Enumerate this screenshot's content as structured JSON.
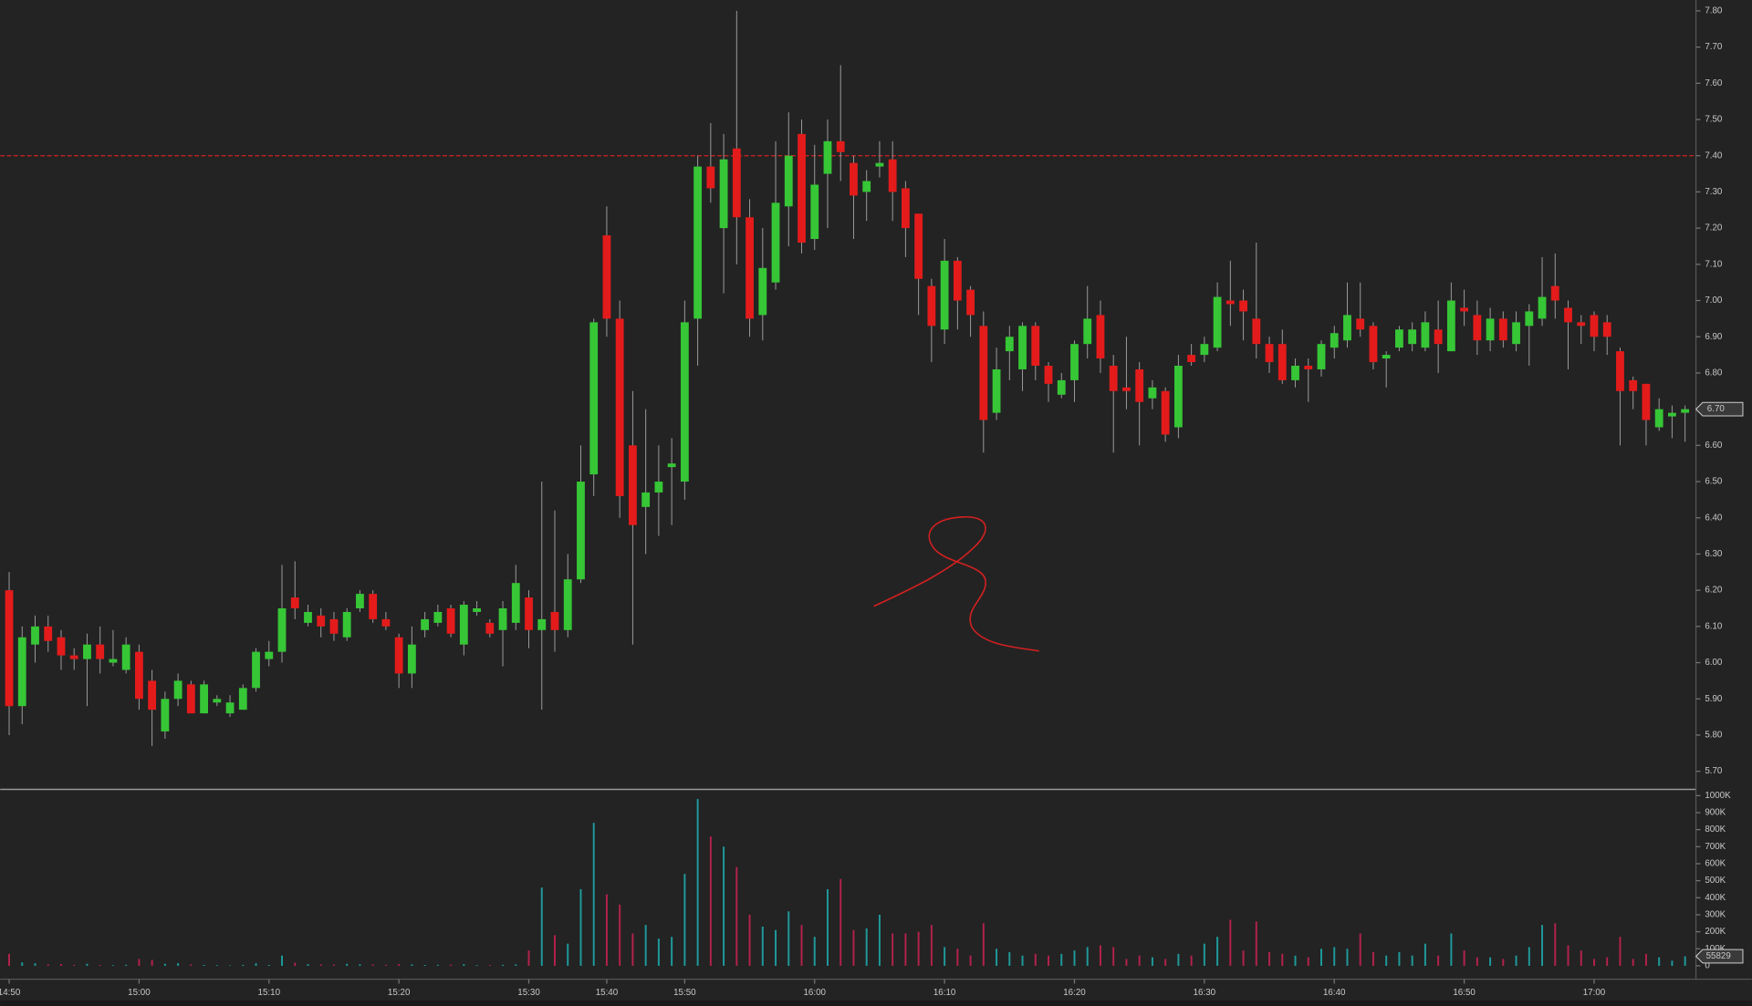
{
  "chart_data": {
    "type": "candlestick",
    "categories": [
      "14:50",
      null,
      null,
      null,
      null,
      null,
      null,
      null,
      null,
      null,
      "15:00",
      null,
      null,
      null,
      null,
      null,
      null,
      null,
      null,
      null,
      "15:10",
      null,
      null,
      null,
      null,
      null,
      null,
      null,
      null,
      null,
      "15:20",
      null,
      null,
      null,
      null,
      null,
      null,
      null,
      null,
      null,
      "15:30",
      null,
      null,
      null,
      null,
      null,
      "15:40",
      null,
      null,
      null,
      null,
      null,
      "15:50",
      null,
      null,
      null,
      null,
      null,
      null,
      null,
      null,
      null,
      "16:00",
      null,
      null,
      null,
      null,
      null,
      null,
      null,
      null,
      null,
      "16:10",
      null,
      null,
      null,
      null,
      null,
      null,
      null,
      null,
      null,
      "16:20",
      null,
      null,
      null,
      null,
      null,
      null,
      null,
      null,
      null,
      "16:30",
      null,
      null,
      null,
      null,
      null,
      null,
      null,
      null,
      null,
      "16:40",
      null,
      null,
      null,
      null,
      null,
      null,
      null,
      null,
      null,
      "16:50",
      null,
      null,
      null,
      null,
      null,
      null,
      null,
      null,
      null,
      "17:00",
      null,
      null,
      null,
      null,
      null,
      null,
      null
    ],
    "open": [
      6.2,
      5.88,
      6.05,
      6.1,
      6.07,
      6.02,
      6.01,
      6.05,
      6.0,
      5.98,
      6.03,
      5.95,
      5.81,
      5.9,
      5.94,
      5.86,
      5.89,
      5.86,
      5.87,
      5.93,
      6.01,
      6.03,
      6.18,
      6.11,
      6.13,
      6.12,
      6.07,
      6.15,
      6.19,
      6.12,
      6.07,
      5.97,
      6.09,
      6.11,
      6.15,
      6.05,
      6.14,
      6.11,
      6.09,
      6.11,
      6.18,
      6.09,
      6.14,
      6.09,
      6.23,
      6.52,
      7.18,
      6.95,
      6.6,
      6.43,
      6.47,
      6.54,
      6.5,
      6.95,
      7.37,
      7.2,
      7.42,
      7.23,
      6.96,
      7.05,
      7.26,
      7.46,
      7.17,
      7.35,
      7.44,
      7.38,
      7.3,
      7.37,
      7.39,
      7.31,
      7.24,
      7.04,
      6.92,
      7.11,
      7.03,
      6.93,
      6.69,
      6.86,
      6.81,
      6.93,
      6.82,
      6.74,
      6.78,
      6.88,
      6.96,
      6.82,
      6.76,
      6.81,
      6.73,
      6.75,
      6.65,
      6.85,
      6.85,
      6.87,
      7.0,
      7.0,
      6.95,
      6.88,
      6.88,
      6.78,
      6.82,
      6.81,
      6.87,
      6.89,
      6.95,
      6.93,
      6.84,
      6.87,
      6.88,
      6.87,
      6.92,
      6.86,
      6.98,
      6.96,
      6.89,
      6.95,
      6.88,
      6.93,
      6.95,
      7.04,
      6.98,
      6.94,
      6.96,
      6.94,
      6.86,
      6.78,
      6.77,
      6.65,
      6.68,
      6.69
    ],
    "high": [
      6.25,
      6.1,
      6.13,
      6.13,
      6.09,
      6.04,
      6.08,
      6.1,
      6.09,
      6.07,
      6.05,
      5.98,
      5.92,
      5.97,
      5.95,
      5.95,
      5.91,
      5.91,
      5.94,
      6.04,
      6.06,
      6.27,
      6.28,
      6.16,
      6.15,
      6.14,
      6.15,
      6.2,
      6.2,
      6.14,
      6.08,
      6.1,
      6.14,
      6.16,
      6.16,
      6.17,
      6.17,
      6.12,
      6.17,
      6.27,
      6.2,
      6.5,
      6.42,
      6.3,
      6.6,
      6.95,
      7.26,
      7.0,
      6.75,
      6.7,
      6.6,
      6.62,
      7.0,
      7.4,
      7.49,
      7.46,
      7.8,
      7.28,
      7.2,
      7.44,
      7.52,
      7.5,
      7.43,
      7.5,
      7.65,
      7.4,
      7.36,
      7.44,
      7.44,
      7.33,
      7.24,
      7.06,
      7.17,
      7.12,
      7.04,
      6.97,
      6.87,
      6.93,
      6.94,
      6.94,
      6.83,
      6.8,
      6.89,
      7.04,
      7.0,
      6.85,
      6.9,
      6.83,
      6.78,
      6.76,
      6.85,
      6.88,
      6.9,
      7.05,
      7.11,
      7.03,
      7.16,
      6.9,
      6.92,
      6.84,
      6.84,
      6.89,
      6.93,
      7.05,
      7.05,
      6.94,
      6.86,
      6.93,
      6.94,
      6.97,
      7.0,
      7.05,
      7.03,
      7.0,
      6.98,
      6.97,
      6.97,
      6.99,
      7.12,
      7.13,
      7.0,
      6.96,
      6.97,
      6.96,
      6.87,
      6.79,
      6.77,
      6.73,
      6.71,
      6.71
    ],
    "low": [
      5.8,
      5.83,
      6.0,
      6.03,
      5.98,
      5.98,
      5.88,
      5.97,
      5.99,
      5.97,
      5.87,
      5.77,
      5.79,
      5.88,
      5.86,
      5.86,
      5.88,
      5.85,
      5.87,
      5.92,
      5.99,
      6.0,
      6.12,
      6.1,
      6.07,
      6.06,
      6.06,
      6.14,
      6.11,
      6.09,
      5.93,
      5.93,
      6.07,
      6.1,
      6.07,
      6.02,
      6.13,
      6.07,
      5.99,
      6.09,
      6.04,
      5.87,
      6.03,
      6.07,
      6.22,
      6.46,
      6.9,
      6.4,
      6.05,
      6.3,
      6.35,
      6.38,
      6.45,
      6.82,
      7.27,
      7.02,
      7.1,
      6.9,
      6.89,
      7.03,
      7.15,
      7.13,
      7.14,
      7.2,
      7.33,
      7.17,
      7.22,
      7.34,
      7.22,
      7.12,
      6.96,
      6.83,
      6.88,
      6.92,
      6.9,
      6.58,
      6.67,
      6.78,
      6.75,
      6.78,
      6.72,
      6.73,
      6.72,
      6.84,
      6.8,
      6.58,
      6.7,
      6.6,
      6.7,
      6.61,
      6.62,
      6.82,
      6.83,
      6.86,
      6.93,
      6.89,
      6.84,
      6.8,
      6.77,
      6.76,
      6.72,
      6.79,
      6.84,
      6.87,
      6.9,
      6.81,
      6.76,
      6.86,
      6.86,
      6.86,
      6.8,
      6.86,
      6.93,
      6.85,
      6.86,
      6.87,
      6.86,
      6.82,
      6.93,
      6.95,
      6.81,
      6.88,
      6.86,
      6.85,
      6.6,
      6.7,
      6.6,
      6.64,
      6.62,
      6.61
    ],
    "close": [
      5.88,
      6.07,
      6.1,
      6.06,
      6.02,
      6.01,
      6.05,
      6.01,
      6.01,
      6.05,
      5.9,
      5.87,
      5.9,
      5.95,
      5.86,
      5.94,
      5.9,
      5.89,
      5.93,
      6.03,
      6.03,
      6.15,
      6.15,
      6.14,
      6.1,
      6.08,
      6.14,
      6.19,
      6.12,
      6.1,
      5.97,
      6.05,
      6.12,
      6.14,
      6.08,
      6.16,
      6.15,
      6.08,
      6.15,
      6.22,
      6.09,
      6.12,
      6.09,
      6.23,
      6.5,
      6.94,
      6.95,
      6.46,
      6.38,
      6.47,
      6.5,
      6.55,
      6.94,
      7.37,
      7.31,
      7.39,
      7.23,
      6.95,
      7.09,
      7.27,
      7.4,
      7.16,
      7.32,
      7.44,
      7.41,
      7.29,
      7.33,
      7.38,
      7.3,
      7.2,
      7.06,
      6.93,
      7.11,
      7.0,
      6.96,
      6.67,
      6.81,
      6.9,
      6.93,
      6.82,
      6.77,
      6.78,
      6.88,
      6.95,
      6.84,
      6.75,
      6.75,
      6.72,
      6.76,
      6.63,
      6.82,
      6.83,
      6.88,
      7.01,
      6.99,
      6.97,
      6.88,
      6.83,
      6.78,
      6.82,
      6.81,
      6.88,
      6.91,
      6.96,
      6.92,
      6.83,
      6.85,
      6.92,
      6.92,
      6.94,
      6.88,
      7.0,
      6.97,
      6.89,
      6.95,
      6.89,
      6.94,
      6.97,
      7.01,
      7.0,
      6.94,
      6.93,
      6.9,
      6.9,
      6.75,
      6.75,
      6.67,
      6.7,
      6.69,
      6.7
    ],
    "volume": [
      70000,
      20000,
      15000,
      8000,
      10000,
      6000,
      12000,
      5000,
      4000,
      6000,
      40000,
      35000,
      12000,
      15000,
      8000,
      5000,
      4000,
      3000,
      6000,
      15000,
      5000,
      60000,
      18000,
      10000,
      8000,
      7000,
      12000,
      9000,
      8000,
      6000,
      10000,
      8000,
      5000,
      6000,
      7000,
      9000,
      4000,
      5000,
      6000,
      8000,
      90000,
      460000,
      180000,
      130000,
      450000,
      840000,
      420000,
      360000,
      190000,
      240000,
      160000,
      170000,
      540000,
      980000,
      760000,
      700000,
      580000,
      300000,
      230000,
      210000,
      320000,
      240000,
      170000,
      450000,
      510000,
      210000,
      220000,
      300000,
      190000,
      190000,
      200000,
      240000,
      110000,
      100000,
      60000,
      250000,
      100000,
      80000,
      60000,
      70000,
      60000,
      70000,
      90000,
      110000,
      120000,
      110000,
      40000,
      60000,
      50000,
      40000,
      70000,
      60000,
      130000,
      170000,
      270000,
      90000,
      260000,
      80000,
      70000,
      60000,
      50000,
      100000,
      110000,
      100000,
      190000,
      80000,
      60000,
      80000,
      60000,
      130000,
      60000,
      190000,
      90000,
      50000,
      50000,
      40000,
      60000,
      110000,
      240000,
      250000,
      120000,
      90000,
      40000,
      50000,
      170000,
      40000,
      70000,
      50000,
      30000,
      55829
    ],
    "ylim": [
      5.65,
      7.83
    ],
    "yticks": [
      {
        "value": 5.7,
        "label": "5.70"
      },
      {
        "value": 5.8,
        "label": "5.80"
      },
      {
        "value": 5.9,
        "label": "5.90"
      },
      {
        "value": 6.0,
        "label": "6.00"
      },
      {
        "value": 6.1,
        "label": "6.10"
      },
      {
        "value": 6.2,
        "label": "6.20"
      },
      {
        "value": 6.3,
        "label": "6.30"
      },
      {
        "value": 6.4,
        "label": "6.40"
      },
      {
        "value": 6.5,
        "label": "6.50"
      },
      {
        "value": 6.6,
        "label": "6.60"
      },
      {
        "value": 6.7,
        "label": "6.70"
      },
      {
        "value": 6.8,
        "label": "6.80"
      },
      {
        "value": 6.9,
        "label": "6.90"
      },
      {
        "value": 7.0,
        "label": "7.00"
      },
      {
        "value": 7.1,
        "label": "7.10"
      },
      {
        "value": 7.2,
        "label": "7.20"
      },
      {
        "value": 7.3,
        "label": "7.30"
      },
      {
        "value": 7.4,
        "label": "7.40"
      },
      {
        "value": 7.5,
        "label": "7.50"
      },
      {
        "value": 7.6,
        "label": "7.60"
      },
      {
        "value": 7.7,
        "label": "7.70"
      },
      {
        "value": 7.8,
        "label": "7.80"
      }
    ],
    "y2lim": [
      0,
      1030000
    ],
    "y2ticks": [
      0,
      {
        "value": 100000,
        "label": "100K"
      },
      {
        "value": 200000,
        "label": "200K"
      },
      {
        "value": 300000,
        "label": "300K"
      },
      {
        "value": 400000,
        "label": "400K"
      },
      {
        "value": 500000,
        "label": "500K"
      },
      {
        "value": 600000,
        "label": "600K"
      },
      {
        "value": 700000,
        "label": "700K"
      },
      {
        "value": 800000,
        "label": "800K"
      },
      {
        "value": 900000,
        "label": "900K"
      },
      {
        "value": 1000000,
        "label": "1000K"
      }
    ],
    "grid": false,
    "up_color": "#36c636",
    "down_color": "#e31b1b",
    "wick_color": "#9c9c9c",
    "volume_up_color": "#1f9a9c",
    "volume_down_color": "#b3224c",
    "hline": {
      "value": 7.4,
      "color": "#d42222"
    },
    "last_price": {
      "value": 6.7,
      "label": "6.70"
    },
    "last_volume": 55829
  }
}
